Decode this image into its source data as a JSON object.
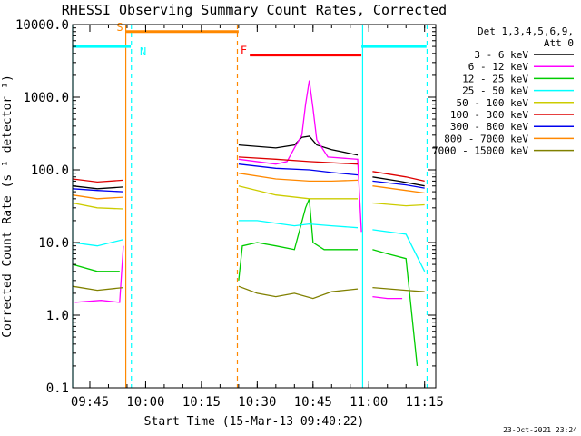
{
  "chart_data": {
    "type": "line",
    "title": "RHESSI Observing Summary Count Rates, Corrected",
    "xlabel": "Start Time (15-Mar-13 09:40:22)",
    "ylabel": "Corrected Count Rate (s⁻¹ detector⁻¹)",
    "y_scale": "log",
    "ylim": [
      0.1,
      10000
    ],
    "xlim": [
      "09:40:22",
      "11:18:00"
    ],
    "x_ticks": [
      "09:45",
      "10:00",
      "10:15",
      "10:30",
      "10:45",
      "11:00",
      "11:15"
    ],
    "y_ticks": [
      "0.1",
      "1.0",
      "10.0",
      "100.0",
      "1000.0",
      "10000.0"
    ],
    "legend_header": [
      "Det 1,3,4,5,6,9,",
      "Att 0"
    ],
    "legend_position": "right",
    "footer": "23-Oct-2021 23:24",
    "segments": [
      {
        "start": "09:40:22",
        "end": "09:54:30"
      },
      {
        "start": "10:25:00",
        "end": "10:58:00"
      },
      {
        "start": "11:01:00",
        "end": "11:15:30"
      }
    ],
    "series": [
      {
        "name": "3 - 6 keV",
        "color": "#000000",
        "points": [
          [
            "09:40:22",
            60
          ],
          [
            "09:47:00",
            55
          ],
          [
            "09:54:00",
            58
          ],
          [
            "10:25:00",
            220
          ],
          [
            "10:35:00",
            200
          ],
          [
            "10:40:00",
            220
          ],
          [
            "10:42:00",
            280
          ],
          [
            "10:44:00",
            290
          ],
          [
            "10:46:00",
            220
          ],
          [
            "10:50:00",
            190
          ],
          [
            "10:57:00",
            160
          ],
          [
            "11:01:00",
            80
          ],
          [
            "11:08:00",
            70
          ],
          [
            "11:15:00",
            60
          ]
        ]
      },
      {
        "name": "6 - 12 keV",
        "color": "#ff00ff",
        "points": [
          [
            "09:41:00",
            1.5
          ],
          [
            "09:48:00",
            1.6
          ],
          [
            "09:53:00",
            1.5
          ],
          [
            "09:54:00",
            9
          ],
          [
            "10:25:00",
            140
          ],
          [
            "10:35:00",
            120
          ],
          [
            "10:38:00",
            130
          ],
          [
            "10:40:00",
            200
          ],
          [
            "10:42:00",
            300
          ],
          [
            "10:43:00",
            800
          ],
          [
            "10:44:00",
            1700
          ],
          [
            "10:45:00",
            700
          ],
          [
            "10:46:00",
            260
          ],
          [
            "10:49:00",
            150
          ],
          [
            "10:57:00",
            140
          ],
          [
            "10:58:00",
            14
          ],
          [
            "11:01:00",
            1.8
          ],
          [
            "11:05:00",
            1.7
          ],
          [
            "11:09:00",
            1.7
          ]
        ]
      },
      {
        "name": "12 - 25 keV",
        "color": "#00cc00",
        "points": [
          [
            "09:40:22",
            5
          ],
          [
            "09:47:00",
            4
          ],
          [
            "09:53:00",
            4
          ],
          [
            "10:25:00",
            3
          ],
          [
            "10:26:00",
            9
          ],
          [
            "10:30:00",
            10
          ],
          [
            "10:35:00",
            9
          ],
          [
            "10:40:00",
            8
          ],
          [
            "10:43:00",
            30
          ],
          [
            "10:44:00",
            40
          ],
          [
            "10:45:00",
            10
          ],
          [
            "10:48:00",
            8
          ],
          [
            "10:57:00",
            8
          ],
          [
            "11:01:00",
            8
          ],
          [
            "11:05:00",
            7
          ],
          [
            "11:10:00",
            6
          ],
          [
            "11:13:00",
            0.2
          ]
        ]
      },
      {
        "name": "25 - 50 keV",
        "color": "#00ffff",
        "points": [
          [
            "09:40:22",
            10
          ],
          [
            "09:47:00",
            9
          ],
          [
            "09:54:00",
            11
          ],
          [
            "10:25:00",
            20
          ],
          [
            "10:30:00",
            20
          ],
          [
            "10:40:00",
            17
          ],
          [
            "10:44:00",
            18
          ],
          [
            "10:50:00",
            17
          ],
          [
            "10:57:00",
            16
          ],
          [
            "11:01:00",
            15
          ],
          [
            "11:10:00",
            13
          ],
          [
            "11:15:00",
            4
          ]
        ]
      },
      {
        "name": "50 - 100 keV",
        "color": "#cccc00",
        "points": [
          [
            "09:40:22",
            35
          ],
          [
            "09:47:00",
            30
          ],
          [
            "09:54:00",
            29
          ],
          [
            "10:25:00",
            60
          ],
          [
            "10:35:00",
            45
          ],
          [
            "10:44:00",
            40
          ],
          [
            "10:50:00",
            40
          ],
          [
            "10:57:00",
            40
          ],
          [
            "11:01:00",
            35
          ],
          [
            "11:10:00",
            32
          ],
          [
            "11:15:00",
            33
          ]
        ]
      },
      {
        "name": "100 - 300 keV",
        "color": "#dd0000",
        "points": [
          [
            "09:40:22",
            75
          ],
          [
            "09:47:00",
            68
          ],
          [
            "09:54:00",
            72
          ],
          [
            "10:25:00",
            150
          ],
          [
            "10:35:00",
            140
          ],
          [
            "10:44:00",
            130
          ],
          [
            "10:50:00",
            125
          ],
          [
            "10:57:00",
            120
          ],
          [
            "11:01:00",
            95
          ],
          [
            "11:10:00",
            80
          ],
          [
            "11:15:00",
            70
          ]
        ]
      },
      {
        "name": "300 - 800 keV",
        "color": "#0000ee",
        "points": [
          [
            "09:40:22",
            55
          ],
          [
            "09:47:00",
            52
          ],
          [
            "09:54:00",
            50
          ],
          [
            "10:25:00",
            120
          ],
          [
            "10:35:00",
            105
          ],
          [
            "10:44:00",
            100
          ],
          [
            "10:50:00",
            92
          ],
          [
            "10:57:00",
            85
          ],
          [
            "11:01:00",
            70
          ],
          [
            "11:10:00",
            62
          ],
          [
            "11:15:00",
            56
          ]
        ]
      },
      {
        "name": "800 - 7000 keV",
        "color": "#ff8800",
        "points": [
          [
            "09:40:22",
            45
          ],
          [
            "09:47:00",
            40
          ],
          [
            "09:54:00",
            42
          ],
          [
            "10:25:00",
            90
          ],
          [
            "10:35:00",
            75
          ],
          [
            "10:44:00",
            70
          ],
          [
            "10:50:00",
            70
          ],
          [
            "10:57:00",
            72
          ],
          [
            "11:01:00",
            60
          ],
          [
            "11:10:00",
            52
          ],
          [
            "11:15:00",
            48
          ]
        ]
      },
      {
        "name": "7000 - 15000 keV",
        "color": "#808000",
        "points": [
          [
            "09:40:22",
            2.5
          ],
          [
            "09:47:00",
            2.2
          ],
          [
            "09:54:00",
            2.4
          ],
          [
            "10:25:00",
            2.5
          ],
          [
            "10:30:00",
            2.0
          ],
          [
            "10:35:00",
            1.8
          ],
          [
            "10:40:00",
            2.0
          ],
          [
            "10:45:00",
            1.7
          ],
          [
            "10:50:00",
            2.1
          ],
          [
            "10:57:00",
            2.3
          ],
          [
            "11:01:00",
            2.4
          ],
          [
            "11:10:00",
            2.2
          ],
          [
            "11:15:00",
            2.1
          ]
        ]
      }
    ],
    "flags": [
      {
        "label": "S",
        "color": "#ff8800",
        "start": "09:54:40",
        "end": "10:25:00",
        "level": 8000
      },
      {
        "label": "N",
        "color": "#00ffff",
        "start": "09:40:22",
        "end": "09:56:00",
        "level": 5000
      },
      {
        "label": "F",
        "color": "#ff0000",
        "start": "10:28:00",
        "end": "10:58:00",
        "level": 3800
      },
      {
        "label": "",
        "color": "#00ffff",
        "start": "10:58:00",
        "end": "11:15:30",
        "level": 5000
      }
    ],
    "vlines": [
      {
        "time": "09:40:22",
        "color": "#00ffff",
        "style": "solid"
      },
      {
        "time": "09:54:40",
        "color": "#ff8800",
        "style": "solid"
      },
      {
        "time": "09:56:10",
        "color": "#00ffff",
        "style": "dashed"
      },
      {
        "time": "10:24:40",
        "color": "#ff8800",
        "style": "dashed"
      },
      {
        "time": "10:58:20",
        "color": "#00ffff",
        "style": "solid"
      },
      {
        "time": "11:15:40",
        "color": "#00ffff",
        "style": "dashed"
      }
    ]
  }
}
